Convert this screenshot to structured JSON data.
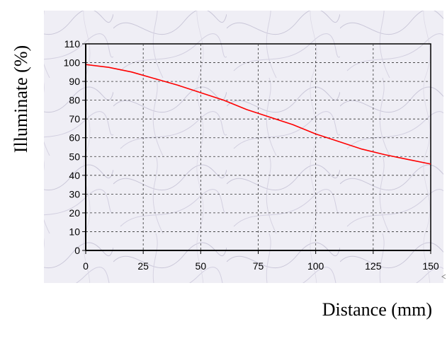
{
  "chart_data": {
    "type": "line",
    "title": "",
    "xlabel": "Distance (mm)",
    "ylabel": "Illuminate (%)",
    "xlim": [
      0,
      150
    ],
    "ylim": [
      0,
      110
    ],
    "x_ticks": [
      "0",
      "25",
      "50",
      "75",
      "100",
      "125",
      "150"
    ],
    "y_ticks": [
      "0",
      "10",
      "20",
      "30",
      "40",
      "50",
      "60",
      "70",
      "80",
      "90",
      "100",
      "110"
    ],
    "grid": true,
    "legend": "none",
    "series": [
      {
        "color": "#ff0000",
        "x": [
          0,
          10,
          20,
          30,
          40,
          50,
          60,
          70,
          80,
          90,
          100,
          110,
          120,
          130,
          140,
          150
        ],
        "y": [
          99,
          97.5,
          95,
          91.5,
          88,
          84,
          80,
          75,
          71,
          67,
          62,
          58,
          54,
          51,
          48.5,
          46
        ]
      }
    ]
  }
}
